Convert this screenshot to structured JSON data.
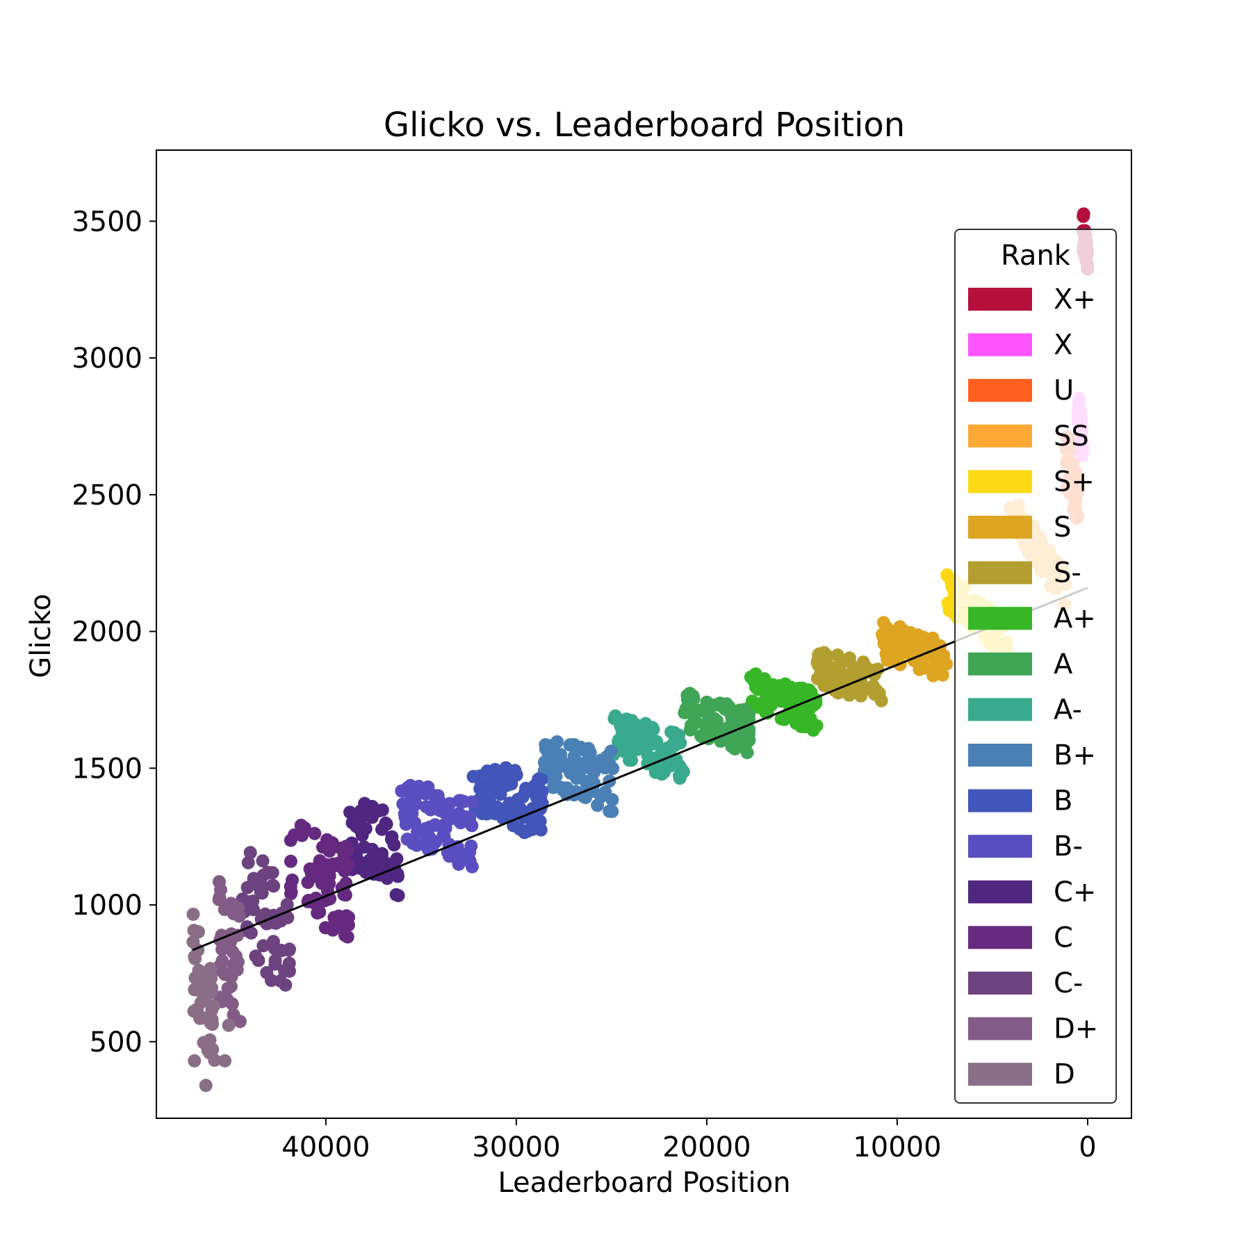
{
  "chart_data": {
    "type": "scatter",
    "title": "Glicko vs. Leaderboard Position",
    "xlabel": "Leaderboard Position",
    "ylabel": "Glicko",
    "xlim": [
      48900,
      -2300
    ],
    "ylim": [
      220,
      3760
    ],
    "x_reversed": true,
    "x_ticks": [
      40000,
      30000,
      20000,
      10000,
      0
    ],
    "y_ticks": [
      500,
      1000,
      1500,
      2000,
      2500,
      3000,
      3500
    ],
    "grid": false,
    "legend": {
      "title": "Rank",
      "position": "right"
    },
    "series": [
      {
        "name": "X+",
        "color": "#b5103c",
        "x_range": [
          0,
          250
        ],
        "bottom": [
          3320,
          3380
        ],
        "top": [
          3380,
          3560
        ]
      },
      {
        "name": "X",
        "color": "#ff55ff",
        "x_range": [
          250,
          500
        ],
        "bottom": [
          2600,
          2700
        ],
        "top": [
          2700,
          2900
        ]
      },
      {
        "name": "U",
        "color": "#ff6020",
        "x_range": [
          500,
          1150
        ],
        "bottom": [
          2400,
          2500
        ],
        "top": [
          2560,
          2760
        ]
      },
      {
        "name": "SS",
        "color": "#fda834",
        "x_range": [
          1150,
          4200
        ],
        "bottom": [
          2080,
          2400
        ],
        "top": [
          2220,
          2520
        ]
      },
      {
        "name": "S+",
        "color": "#fdd815",
        "x_range": [
          4200,
          7400
        ],
        "bottom": [
          1900,
          2080
        ],
        "top": [
          2040,
          2220
        ]
      },
      {
        "name": "S",
        "color": "#dea522",
        "x_range": [
          7400,
          10800
        ],
        "bottom": [
          1800,
          1900
        ],
        "top": [
          1960,
          2040
        ]
      },
      {
        "name": "S-",
        "color": "#b29f30",
        "x_range": [
          10800,
          14200
        ],
        "bottom": [
          1720,
          1800
        ],
        "top": [
          1870,
          1940
        ]
      },
      {
        "name": "A+",
        "color": "#37b727",
        "x_range": [
          14200,
          17700
        ],
        "bottom": [
          1630,
          1720
        ],
        "top": [
          1780,
          1850
        ]
      },
      {
        "name": "A",
        "color": "#40a556",
        "x_range": [
          17700,
          21200
        ],
        "bottom": [
          1550,
          1630
        ],
        "top": [
          1720,
          1780
        ]
      },
      {
        "name": "A-",
        "color": "#39aa8e",
        "x_range": [
          21200,
          24900
        ],
        "bottom": [
          1440,
          1550
        ],
        "top": [
          1620,
          1700
        ]
      },
      {
        "name": "B+",
        "color": "#4a80b5",
        "x_range": [
          24900,
          28600
        ],
        "bottom": [
          1330,
          1440
        ],
        "top": [
          1560,
          1620
        ]
      },
      {
        "name": "B",
        "color": "#4255b8",
        "x_range": [
          28600,
          32300
        ],
        "bottom": [
          1240,
          1330
        ],
        "top": [
          1460,
          1540
        ]
      },
      {
        "name": "B-",
        "color": "#594fc0",
        "x_range": [
          32300,
          36100
        ],
        "bottom": [
          1120,
          1240
        ],
        "top": [
          1390,
          1460
        ]
      },
      {
        "name": "C+",
        "color": "#4f2680",
        "x_range": [
          36100,
          38800
        ],
        "bottom": [
          1030,
          1120
        ],
        "top": [
          1320,
          1400
        ]
      },
      {
        "name": "C",
        "color": "#652a80",
        "x_range": [
          38800,
          41900
        ],
        "bottom": [
          840,
          1030
        ],
        "top": [
          1210,
          1320
        ]
      },
      {
        "name": "C-",
        "color": "#6c427f",
        "x_range": [
          41900,
          44400
        ],
        "bottom": [
          640,
          840
        ],
        "top": [
          1090,
          1220
        ]
      },
      {
        "name": "D+",
        "color": "#825c86",
        "x_range": [
          44400,
          45700
        ],
        "bottom": [
          520,
          640
        ],
        "top": [
          980,
          1100
        ]
      },
      {
        "name": "D",
        "color": "#8a6d87",
        "x_range": [
          45700,
          47000
        ],
        "bottom": [
          420,
          520
        ],
        "top": [
          700,
          980
        ]
      }
    ],
    "outliers": [
      {
        "x": 46300,
        "y": 340
      },
      {
        "x": 46900,
        "y": 430
      },
      {
        "x": 45300,
        "y": 430
      },
      {
        "x": 46200,
        "y": 470
      },
      {
        "x": 45100,
        "y": 560
      }
    ],
    "trendline": {
      "color": "#000000",
      "x": [
        47000,
        0
      ],
      "y": [
        835,
        2160
      ]
    }
  }
}
